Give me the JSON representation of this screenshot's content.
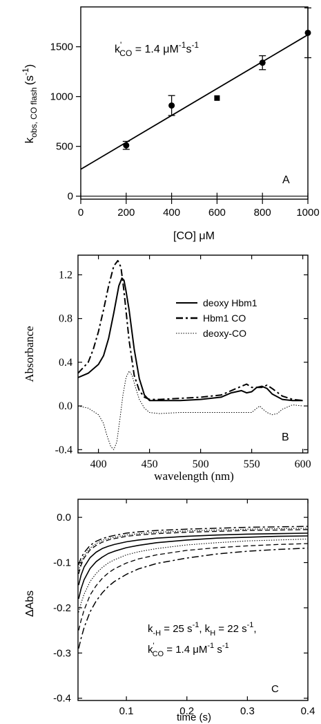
{
  "chart_data": [
    {
      "panel": "A",
      "type": "scatter",
      "title": "",
      "xlabel": "[CO] μM",
      "ylabel_main": "k",
      "ylabel_sub": "obs, CO flash",
      "ylabel_unit": "(s",
      "ylabel_unit_exp": "-1",
      "ylabel_unit_close": ")",
      "xlim": [
        0,
        1000
      ],
      "ylim": [
        -30,
        1900
      ],
      "xticks": [
        0,
        200,
        400,
        600,
        800,
        1000
      ],
      "yticks": [
        0,
        500,
        1000,
        1500
      ],
      "series": [
        {
          "marker": "circle",
          "x": [
            200,
            400,
            800,
            1000
          ],
          "y": [
            510,
            910,
            1340,
            1640
          ],
          "yerr": [
            40,
            100,
            70,
            250
          ]
        },
        {
          "marker": "square",
          "x": [
            600
          ],
          "y": [
            985
          ],
          "yerr": [
            0
          ]
        }
      ],
      "fit_line": {
        "x": [
          0,
          1000
        ],
        "y": [
          270,
          1620
        ]
      },
      "annotation": {
        "prefix": "k",
        "sup": "'",
        "sub": "CO",
        "mid": " = 1.4 μM",
        "exp1": "-1",
        "s": "s",
        "exp2": "-1"
      },
      "panel_label": "A",
      "grid": false
    },
    {
      "panel": "B",
      "type": "line",
      "title": "",
      "xlabel": "wavelength (nm)",
      "ylabel": "Absorbance",
      "xlim": [
        380,
        605
      ],
      "ylim": [
        -0.43,
        1.38
      ],
      "xticks": [
        400,
        450,
        500,
        550,
        600
      ],
      "yticks": [
        -0.4,
        0.0,
        0.4,
        0.8,
        1.2
      ],
      "ytick_labels": [
        "-0.4",
        "0.0",
        "0.4",
        "0.8",
        "1.2"
      ],
      "series": [
        {
          "name": "deoxy Hbm1",
          "style": "solid",
          "x": [
            380,
            390,
            400,
            405,
            410,
            415,
            420,
            423,
            425,
            427,
            430,
            435,
            440,
            445,
            450,
            460,
            480,
            500,
            520,
            530,
            540,
            545,
            550,
            555,
            560,
            565,
            570,
            580,
            590,
            600
          ],
          "y": [
            0.26,
            0.3,
            0.38,
            0.46,
            0.62,
            0.85,
            1.1,
            1.17,
            1.15,
            1.05,
            0.88,
            0.52,
            0.25,
            0.1,
            0.05,
            0.05,
            0.05,
            0.06,
            0.08,
            0.12,
            0.14,
            0.12,
            0.13,
            0.17,
            0.18,
            0.16,
            0.11,
            0.06,
            0.05,
            0.05
          ]
        },
        {
          "name": "Hbm1 CO",
          "style": "dashdot",
          "x": [
            380,
            390,
            395,
            400,
            405,
            410,
            415,
            419,
            422,
            425,
            430,
            435,
            440,
            445,
            450,
            460,
            480,
            500,
            520,
            530,
            540,
            545,
            550,
            560,
            565,
            570,
            580,
            590,
            600
          ],
          "y": [
            0.3,
            0.4,
            0.52,
            0.68,
            0.88,
            1.1,
            1.28,
            1.33,
            1.27,
            1.05,
            0.6,
            0.28,
            0.14,
            0.08,
            0.06,
            0.06,
            0.07,
            0.08,
            0.1,
            0.14,
            0.18,
            0.2,
            0.17,
            0.17,
            0.19,
            0.16,
            0.09,
            0.06,
            0.05
          ]
        },
        {
          "name": "deoxy-CO",
          "style": "dotted",
          "x": [
            380,
            390,
            400,
            405,
            408,
            412,
            415,
            418,
            421,
            424,
            427,
            430,
            433,
            436,
            440,
            445,
            450,
            460,
            480,
            500,
            520,
            540,
            550,
            555,
            558,
            561,
            565,
            570,
            575,
            580,
            590,
            600
          ],
          "y": [
            0.0,
            -0.02,
            -0.08,
            -0.16,
            -0.26,
            -0.37,
            -0.4,
            -0.33,
            -0.12,
            0.1,
            0.26,
            0.32,
            0.28,
            0.18,
            0.06,
            -0.02,
            -0.06,
            -0.07,
            -0.06,
            -0.06,
            -0.06,
            -0.06,
            -0.06,
            -0.02,
            0.0,
            -0.03,
            -0.06,
            -0.08,
            -0.07,
            -0.03,
            0.01,
            0.0
          ]
        }
      ],
      "panel_label": "B",
      "legend_position": "top-right",
      "grid": false
    },
    {
      "panel": "C",
      "type": "line",
      "title": "",
      "xlabel": "time (s)",
      "ylabel": "ΔAbs",
      "xlim": [
        0.02,
        0.4
      ],
      "ylim": [
        -0.405,
        0.04
      ],
      "xticks": [
        0.1,
        0.2,
        0.3,
        0.4
      ],
      "yticks": [
        -0.4,
        -0.3,
        -0.2,
        -0.1,
        0.0
      ],
      "ytick_labels": [
        "-0.4",
        "-0.3",
        "-0.2",
        "-0.1",
        "0.0"
      ],
      "x": [
        0.021,
        0.025,
        0.03,
        0.04,
        0.05,
        0.06,
        0.07,
        0.08,
        0.1,
        0.12,
        0.15,
        0.2,
        0.25,
        0.3,
        0.35,
        0.4
      ],
      "series": [
        {
          "style": "dashdot",
          "y": [
            -0.105,
            -0.09,
            -0.078,
            -0.062,
            -0.053,
            -0.047,
            -0.043,
            -0.04,
            -0.035,
            -0.032,
            -0.029,
            -0.026,
            -0.024,
            -0.022,
            -0.021,
            -0.02
          ]
        },
        {
          "style": "dotted",
          "y": [
            -0.118,
            -0.1,
            -0.085,
            -0.068,
            -0.058,
            -0.051,
            -0.047,
            -0.044,
            -0.039,
            -0.036,
            -0.033,
            -0.03,
            -0.028,
            -0.026,
            -0.025,
            -0.024
          ]
        },
        {
          "style": "dashed",
          "y": [
            -0.125,
            -0.106,
            -0.09,
            -0.072,
            -0.062,
            -0.055,
            -0.05,
            -0.047,
            -0.042,
            -0.039,
            -0.036,
            -0.033,
            -0.031,
            -0.029,
            -0.028,
            -0.027
          ]
        },
        {
          "style": "solid",
          "y": [
            -0.15,
            -0.128,
            -0.11,
            -0.089,
            -0.077,
            -0.069,
            -0.064,
            -0.06,
            -0.054,
            -0.05,
            -0.046,
            -0.042,
            -0.039,
            -0.037,
            -0.036,
            -0.035
          ]
        },
        {
          "style": "solid",
          "y": [
            -0.18,
            -0.158,
            -0.138,
            -0.113,
            -0.098,
            -0.088,
            -0.08,
            -0.075,
            -0.067,
            -0.062,
            -0.056,
            -0.05,
            -0.046,
            -0.044,
            -0.042,
            -0.041
          ]
        },
        {
          "style": "dotted",
          "y": [
            -0.21,
            -0.19,
            -0.17,
            -0.142,
            -0.124,
            -0.111,
            -0.101,
            -0.094,
            -0.083,
            -0.076,
            -0.069,
            -0.061,
            -0.056,
            -0.052,
            -0.05,
            -0.048
          ]
        },
        {
          "style": "dashed",
          "y": [
            -0.25,
            -0.228,
            -0.205,
            -0.172,
            -0.151,
            -0.135,
            -0.123,
            -0.114,
            -0.101,
            -0.092,
            -0.083,
            -0.073,
            -0.067,
            -0.063,
            -0.06,
            -0.058
          ]
        },
        {
          "style": "dashdot",
          "y": [
            -0.29,
            -0.268,
            -0.244,
            -0.209,
            -0.185,
            -0.167,
            -0.153,
            -0.142,
            -0.126,
            -0.114,
            -0.102,
            -0.09,
            -0.081,
            -0.075,
            -0.071,
            -0.068
          ]
        }
      ],
      "annotation": {
        "line1_k": "k",
        "line1_sub1": "-H",
        "line1_mid": " = 25 s",
        "line1_exp1": "-1",
        "line1_sep": ", k",
        "line1_sub2": "H",
        "line1_mid2": " = 22 s",
        "line1_exp2": "-1",
        "line1_end": ",",
        "line2_k": "k",
        "line2_sup": "'",
        "line2_sub": "CO",
        "line2_mid": " = 1.4 μM",
        "line2_exp1": "-1",
        "line2_s": " s",
        "line2_exp2": "-1"
      },
      "panel_label": "C",
      "grid": false
    }
  ]
}
